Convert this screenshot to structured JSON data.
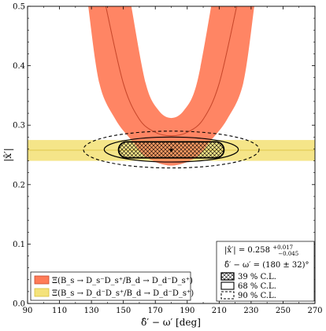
{
  "chart_data": {
    "type": "area",
    "xlabel": "δ̂′ − ω′ [deg]",
    "ylabel": "|x̂′|",
    "xlim": [
      90,
      270
    ],
    "ylim": [
      0.0,
      0.5
    ],
    "xticks": [
      90,
      110,
      130,
      150,
      170,
      190,
      210,
      230,
      250,
      270
    ],
    "yticks": [
      0.0,
      0.1,
      0.2,
      0.3,
      0.4,
      0.5
    ],
    "xtick_labels": [
      "90",
      "110",
      "130",
      "150",
      "170",
      "190",
      "210",
      "230",
      "250",
      "270"
    ],
    "ytick_labels": [
      "0.0",
      "0.1",
      "0.2",
      "0.3",
      "0.4",
      "0.5"
    ],
    "colors": {
      "orange_band": "#ff7b57",
      "orange_line": "#c8482c",
      "yellow_band": "#f4e27a",
      "yellow_line": "#d8bf3a",
      "contour": "#000000"
    },
    "series": [
      {
        "name": "Ξ(B_s → D_s⁻D_s⁺/B_d → D_d⁻D_s⁺)",
        "kind": "u-band",
        "center": {
          "x": [
            139,
            150,
            160,
            170,
            180,
            190,
            200,
            210,
            221
          ],
          "y": [
            0.5,
            0.37,
            0.31,
            0.288,
            0.282,
            0.288,
            0.31,
            0.37,
            0.5
          ]
        },
        "inner": {
          "x": [
            155,
            164,
            172,
            180,
            188,
            196,
            205
          ],
          "y": [
            0.5,
            0.37,
            0.325,
            0.312,
            0.325,
            0.37,
            0.5
          ]
        },
        "outer": {
          "x": [
            128,
            135,
            145,
            155,
            165,
            180,
            195,
            205,
            215,
            225,
            232
          ],
          "y": [
            0.5,
            0.37,
            0.31,
            0.275,
            0.245,
            0.232,
            0.245,
            0.275,
            0.31,
            0.37,
            0.5
          ]
        }
      },
      {
        "name": "Ξ(B_s → D_d⁻D_s⁺/B_d → D_d⁻D_s⁺)",
        "kind": "horizontal-band",
        "center": 0.258,
        "low": 0.24,
        "high": 0.275
      }
    ],
    "best_fit": {
      "x": 180,
      "y": 0.258
    },
    "contours": [
      {
        "label": "39 % C.L.",
        "style": "hatched",
        "x_range": [
          147,
          213
        ],
        "y_range": [
          0.245,
          0.272
        ]
      },
      {
        "label": "68 % C.L.",
        "style": "solid",
        "x_range": [
          138,
          222
        ],
        "y_range": [
          0.238,
          0.28
        ]
      },
      {
        "label": "90 % C.L.",
        "style": "dashed",
        "x_range": [
          125,
          235
        ],
        "y_range": [
          0.228,
          0.29
        ]
      }
    ],
    "annotations": {
      "x_result": "|x̂′| = 0.258",
      "x_result_sup": "+0.017",
      "x_result_sub": "−0.045",
      "phase_result": "δ̂′ − ω′ = (180 ± 32)°"
    },
    "legend": {
      "placement": "bottom-left",
      "entries": [
        "Ξ(B_s → D_s⁻D_s⁺/B_d → D_d⁻D_s⁺)",
        "Ξ(B_s → D_d⁻D_s⁺/B_d → D_d⁻D_s⁺)"
      ]
    },
    "cl_legend": {
      "placement": "bottom-right",
      "entries": [
        "39 % C.L.",
        "68 % C.L.",
        "90 % C.L."
      ]
    }
  }
}
